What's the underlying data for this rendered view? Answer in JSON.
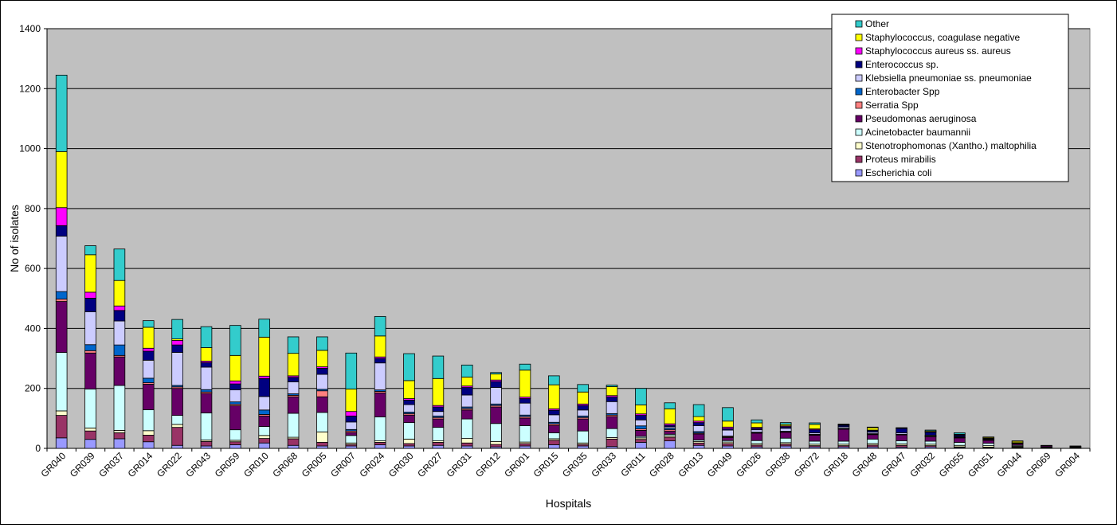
{
  "chart_data": {
    "type": "bar",
    "stacked": true,
    "xlabel": "Hospitals",
    "ylabel": "No of isolates",
    "ylim": [
      0,
      1400
    ],
    "yticks": [
      0,
      200,
      400,
      600,
      800,
      1000,
      1200,
      1400
    ],
    "grid": true,
    "legend_position": "top-right",
    "categories": [
      "GR040",
      "GR039",
      "GR037",
      "GR014",
      "GR022",
      "GR043",
      "GR059",
      "GR010",
      "GR068",
      "GR005",
      "GR007",
      "GR024",
      "GR030",
      "GR027",
      "GR031",
      "GR012",
      "GR001",
      "GR015",
      "GR035",
      "GR033",
      "GR011",
      "GR028",
      "GR013",
      "GR049",
      "GR026",
      "GR038",
      "GR072",
      "GR018",
      "GR048",
      "GR047",
      "GR032",
      "GR055",
      "GR051",
      "GR044",
      "GR069",
      "GR004"
    ],
    "category_labels_shown": [
      "GR040",
      "GR039",
      "GR037",
      "GR014",
      "GR022",
      "GR043",
      "GR059",
      "GR010",
      "GR068",
      "GR005",
      "GR007",
      "GR024",
      "GR030",
      "GR027",
      "GR031",
      "GR012",
      "GR001",
      "GR015",
      "GR035",
      "GR033",
      "GR011",
      "GR028",
      "GR013",
      "GR049",
      "GR026",
      "GR038",
      "GR072",
      "GR018",
      "GR048",
      "GR047",
      "GR032",
      "GR055",
      "GR051",
      "GR044",
      "GR069",
      "GR004"
    ],
    "series": [
      {
        "name": "Escherichia coli",
        "color": "#9999FF",
        "values": [
          35,
          30,
          32,
          22,
          10,
          8,
          12,
          18,
          10,
          8,
          8,
          12,
          8,
          10,
          8,
          5,
          8,
          12,
          8,
          6,
          20,
          25,
          10,
          8,
          5,
          8,
          5,
          5,
          5,
          4,
          5,
          3,
          2,
          2,
          1,
          1
        ]
      },
      {
        "name": "Proteus mirabilis",
        "color": "#993366",
        "values": [
          75,
          28,
          20,
          22,
          60,
          15,
          10,
          15,
          22,
          12,
          5,
          8,
          8,
          10,
          10,
          8,
          8,
          15,
          5,
          25,
          10,
          12,
          8,
          8,
          6,
          6,
          4,
          4,
          6,
          6,
          4,
          2,
          2,
          2,
          1,
          1
        ]
      },
      {
        "name": "Stenotrophomonas (Xantho.) maltophilia",
        "color": "#FFFFCC",
        "values": [
          15,
          10,
          8,
          15,
          10,
          5,
          5,
          10,
          5,
          35,
          5,
          5,
          15,
          5,
          15,
          10,
          5,
          5,
          5,
          5,
          5,
          5,
          5,
          5,
          5,
          5,
          5,
          5,
          5,
          5,
          5,
          5,
          5,
          3,
          1,
          1
        ]
      },
      {
        "name": "Acinetobacter baumannii",
        "color": "#CCFFFF",
        "values": [
          195,
          130,
          150,
          70,
          30,
          90,
          35,
          30,
          80,
          65,
          25,
          80,
          55,
          45,
          65,
          60,
          55,
          20,
          40,
          30,
          5,
          5,
          5,
          5,
          10,
          15,
          10,
          10,
          15,
          10,
          10,
          10,
          8,
          3,
          1,
          1
        ]
      },
      {
        "name": "Pseudomonas aeruginosa",
        "color": "#660066",
        "values": [
          170,
          120,
          95,
          85,
          90,
          65,
          80,
          35,
          55,
          52,
          10,
          80,
          25,
          28,
          30,
          55,
          25,
          25,
          40,
          40,
          20,
          10,
          20,
          10,
          25,
          20,
          20,
          40,
          15,
          20,
          15,
          15,
          10,
          5,
          4,
          2
        ]
      },
      {
        "name": "Serratia Spp",
        "color": "#FF8080",
        "values": [
          8,
          8,
          5,
          5,
          5,
          5,
          5,
          5,
          5,
          20,
          5,
          5,
          5,
          5,
          5,
          5,
          5,
          5,
          5,
          5,
          5,
          5,
          3,
          3,
          1,
          1,
          1,
          1,
          1,
          1,
          1,
          1,
          1,
          0,
          0,
          0
        ]
      },
      {
        "name": "Enterobacter Spp",
        "color": "#0066CC",
        "values": [
          25,
          20,
          35,
          15,
          5,
          8,
          8,
          15,
          5,
          5,
          5,
          5,
          5,
          5,
          5,
          5,
          5,
          5,
          5,
          5,
          10,
          5,
          5,
          2,
          2,
          2,
          2,
          2,
          2,
          1,
          1,
          1,
          1,
          0,
          0,
          0
        ]
      },
      {
        "name": "Klebsiella pneumoniae ss. pneumoniae",
        "color": "#CCCCFF",
        "values": [
          185,
          110,
          80,
          60,
          110,
          75,
          40,
          45,
          40,
          50,
          25,
          90,
          25,
          15,
          40,
          55,
          40,
          25,
          20,
          40,
          20,
          5,
          20,
          20,
          8,
          10,
          5,
          5,
          5,
          5,
          3,
          2,
          2,
          1,
          1,
          1
        ]
      },
      {
        "name": "Enterococcus sp.",
        "color": "#000080",
        "values": [
          35,
          45,
          35,
          30,
          25,
          15,
          20,
          60,
          15,
          20,
          20,
          15,
          15,
          15,
          25,
          20,
          15,
          15,
          15,
          15,
          15,
          5,
          10,
          5,
          5,
          5,
          10,
          5,
          5,
          15,
          10,
          5,
          2,
          2,
          1,
          1
        ]
      },
      {
        "name": "Staphylococcus aureus ss. aureus",
        "color": "#FF00FF",
        "values": [
          60,
          20,
          15,
          10,
          15,
          5,
          10,
          8,
          5,
          5,
          15,
          5,
          5,
          5,
          5,
          5,
          5,
          5,
          5,
          5,
          5,
          5,
          5,
          5,
          3,
          3,
          3,
          1,
          2,
          1,
          1,
          1,
          1,
          1,
          0,
          0
        ]
      },
      {
        "name": "Staphylococcus, coagulase negative",
        "color": "#FFFF00",
        "values": [
          187,
          125,
          85,
          70,
          5,
          45,
          85,
          130,
          75,
          55,
          75,
          70,
          60,
          90,
          30,
          20,
          90,
          80,
          40,
          30,
          30,
          50,
          15,
          20,
          15,
          5,
          15,
          1,
          8,
          1,
          3,
          2,
          3,
          5,
          0,
          0
        ]
      },
      {
        "name": "Other",
        "color": "#33CCCC",
        "values": [
          255,
          30,
          105,
          22,
          65,
          70,
          100,
          60,
          55,
          45,
          120,
          65,
          90,
          75,
          40,
          5,
          20,
          30,
          25,
          5,
          55,
          20,
          40,
          45,
          10,
          6,
          5,
          2,
          2,
          0,
          3,
          5,
          1,
          1,
          0,
          0
        ]
      }
    ]
  }
}
